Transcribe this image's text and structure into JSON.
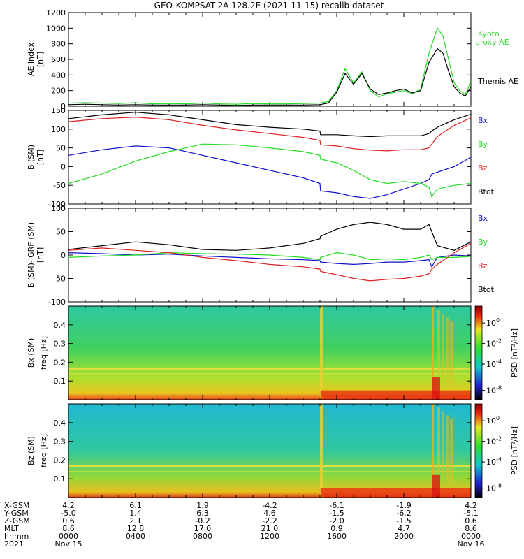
{
  "title": "GEO-KOMPSAT-2A 128.2E (2021-11-15) recalib dataset",
  "colors": {
    "black": "#000000",
    "blue": "#1010cc",
    "green": "#22dd22",
    "red": "#dd2222",
    "kyoto": "#33dd33"
  },
  "chart_data": [
    {
      "type": "line",
      "ylabel": "AE index [nT]",
      "ylim": [
        0,
        1200
      ],
      "yticks": [
        0,
        200,
        400,
        600,
        800,
        1000,
        1200
      ],
      "xlim": [
        0,
        1440
      ],
      "legend": [
        "Kyoto proxy AE",
        "Themis AE"
      ],
      "series": [
        {
          "name": "Kyoto proxy AE",
          "color": "green",
          "x": [
            0,
            60,
            120,
            180,
            240,
            300,
            360,
            420,
            480,
            540,
            600,
            660,
            720,
            780,
            840,
            900,
            930,
            960,
            990,
            1020,
            1050,
            1080,
            1110,
            1140,
            1170,
            1200,
            1230,
            1260,
            1290,
            1320,
            1340,
            1360,
            1380,
            1400,
            1420,
            1440
          ],
          "y": [
            40,
            45,
            40,
            35,
            45,
            30,
            35,
            30,
            40,
            30,
            25,
            35,
            30,
            30,
            35,
            40,
            60,
            200,
            480,
            300,
            440,
            200,
            120,
            160,
            180,
            200,
            160,
            220,
            680,
            1000,
            900,
            600,
            300,
            200,
            150,
            320
          ]
        },
        {
          "name": "Themis AE",
          "color": "black",
          "x": [
            0,
            60,
            120,
            180,
            240,
            300,
            360,
            420,
            480,
            540,
            600,
            660,
            720,
            780,
            840,
            900,
            930,
            960,
            990,
            1020,
            1050,
            1080,
            1110,
            1140,
            1170,
            1200,
            1230,
            1260,
            1290,
            1320,
            1340,
            1360,
            1380,
            1400,
            1420,
            1440
          ],
          "y": [
            20,
            25,
            20,
            15,
            20,
            15,
            15,
            15,
            20,
            15,
            10,
            15,
            15,
            15,
            15,
            20,
            40,
            180,
            420,
            280,
            420,
            220,
            150,
            170,
            200,
            220,
            170,
            200,
            560,
            740,
            680,
            450,
            250,
            170,
            130,
            250
          ]
        }
      ]
    },
    {
      "type": "line",
      "ylabel": "B (SM) [nT]",
      "ylim": [
        -100,
        150
      ],
      "yticks": [
        -100,
        -50,
        0,
        50,
        100,
        150
      ],
      "xlim": [
        0,
        1440
      ],
      "legend": [
        "Bx",
        "By",
        "Bz",
        "Btot"
      ],
      "series": [
        {
          "name": "Bx",
          "color": "blue",
          "x": [
            0,
            120,
            240,
            360,
            480,
            600,
            720,
            840,
            900,
            902,
            960,
            1020,
            1080,
            1140,
            1200,
            1260,
            1290,
            1300,
            1320,
            1380,
            1440
          ],
          "y": [
            30,
            45,
            55,
            50,
            30,
            10,
            -10,
            -30,
            -45,
            -65,
            -70,
            -80,
            -85,
            -75,
            -60,
            -45,
            -35,
            -20,
            -15,
            0,
            25
          ]
        },
        {
          "name": "By",
          "color": "green",
          "x": [
            0,
            120,
            240,
            360,
            480,
            600,
            720,
            840,
            900,
            902,
            960,
            1020,
            1080,
            1140,
            1200,
            1260,
            1290,
            1300,
            1320,
            1380,
            1440
          ],
          "y": [
            -45,
            -20,
            15,
            40,
            60,
            58,
            50,
            40,
            30,
            20,
            10,
            -10,
            -35,
            -45,
            -40,
            -45,
            -55,
            -80,
            -60,
            -50,
            -45
          ]
        },
        {
          "name": "Bz",
          "color": "red",
          "x": [
            0,
            120,
            240,
            360,
            480,
            600,
            720,
            840,
            900,
            902,
            960,
            1020,
            1080,
            1140,
            1200,
            1260,
            1290,
            1300,
            1320,
            1380,
            1440
          ],
          "y": [
            120,
            128,
            132,
            125,
            110,
            98,
            88,
            78,
            70,
            58,
            55,
            48,
            44,
            42,
            45,
            45,
            50,
            60,
            80,
            110,
            130
          ]
        },
        {
          "name": "Btot",
          "color": "black",
          "x": [
            0,
            120,
            240,
            360,
            480,
            600,
            720,
            840,
            900,
            902,
            960,
            1020,
            1080,
            1140,
            1200,
            1260,
            1290,
            1300,
            1320,
            1380,
            1440
          ],
          "y": [
            128,
            138,
            145,
            138,
            125,
            112,
            105,
            100,
            95,
            85,
            85,
            82,
            80,
            82,
            82,
            82,
            88,
            95,
            105,
            125,
            140
          ]
        }
      ]
    },
    {
      "type": "line",
      "ylabel": "B (SM)-IGRF (SM) [nT]",
      "ylim": [
        -100,
        100
      ],
      "yticks": [
        -100,
        -50,
        0,
        50,
        100
      ],
      "xlim": [
        0,
        1440
      ],
      "legend": [
        "Bx",
        "By",
        "Bz",
        "Btot"
      ],
      "series": [
        {
          "name": "Bx",
          "color": "blue",
          "x": [
            0,
            120,
            240,
            360,
            480,
            600,
            720,
            840,
            900,
            902,
            960,
            1020,
            1080,
            1140,
            1200,
            1260,
            1290,
            1300,
            1320,
            1380,
            1440
          ],
          "y": [
            5,
            3,
            0,
            2,
            -2,
            -5,
            -8,
            -10,
            -12,
            -15,
            -18,
            -20,
            -18,
            -15,
            -15,
            -12,
            -10,
            -25,
            -5,
            0,
            -2
          ]
        },
        {
          "name": "By",
          "color": "green",
          "x": [
            0,
            120,
            240,
            360,
            480,
            600,
            720,
            840,
            900,
            902,
            960,
            1020,
            1080,
            1140,
            1200,
            1260,
            1290,
            1300,
            1320,
            1380,
            1440
          ],
          "y": [
            -5,
            -2,
            0,
            5,
            3,
            2,
            0,
            -5,
            -10,
            -5,
            5,
            0,
            -10,
            -8,
            -10,
            -5,
            0,
            -10,
            -5,
            -5,
            -3
          ]
        },
        {
          "name": "Bz",
          "color": "red",
          "x": [
            0,
            120,
            240,
            360,
            480,
            600,
            720,
            840,
            900,
            902,
            960,
            1020,
            1080,
            1140,
            1200,
            1260,
            1290,
            1300,
            1320,
            1380,
            1440
          ],
          "y": [
            10,
            15,
            10,
            5,
            -5,
            -12,
            -20,
            -25,
            -30,
            -35,
            -42,
            -50,
            -55,
            -52,
            -50,
            -45,
            -40,
            -30,
            -20,
            5,
            25
          ]
        },
        {
          "name": "Btot",
          "color": "black",
          "x": [
            0,
            120,
            240,
            360,
            480,
            600,
            720,
            840,
            900,
            902,
            960,
            1020,
            1080,
            1140,
            1200,
            1260,
            1290,
            1300,
            1320,
            1380,
            1440
          ],
          "y": [
            12,
            20,
            28,
            22,
            12,
            10,
            15,
            25,
            35,
            40,
            55,
            65,
            70,
            65,
            55,
            55,
            65,
            50,
            20,
            10,
            28
          ]
        }
      ]
    },
    {
      "type": "heatmap",
      "ylabel": "Bx (SM) freq [Hz]",
      "ylim": [
        0,
        0.5
      ],
      "yticks": [
        0.1,
        0.2,
        0.3,
        0.4
      ],
      "colorbar_label": "PSD [nT²/Hz]",
      "colorbar_ticks": [
        "10^0",
        "10^-2",
        "10^-4",
        "10^-8"
      ]
    },
    {
      "type": "heatmap",
      "ylabel": "Bz (SM) freq [Hz]",
      "ylim": [
        0,
        0.5
      ],
      "yticks": [
        0.1,
        0.2,
        0.3,
        0.4
      ],
      "colorbar_label": "PSD [nT²/Hz]",
      "colorbar_ticks": [
        "10^0",
        "10^-2",
        "10^-4",
        "10^-8"
      ]
    }
  ],
  "panel_labels": {
    "p1": [
      "AE index",
      "[nT]"
    ],
    "p2": [
      "B (SM)",
      "[nT]"
    ],
    "p3": [
      "B (SM)-IGRF (SM)",
      "[nT]"
    ],
    "p4": [
      "Bx (SM)",
      "freq [Hz]"
    ],
    "p5": [
      "Bz (SM)",
      "freq [Hz]"
    ]
  },
  "legend_labels": {
    "kyoto1": "Kyoto",
    "kyoto2": "proxy AE",
    "themis": "Themis AE",
    "bx": "Bx",
    "by": "By",
    "bz": "Bz",
    "btot": "Btot",
    "psd": "PSD [nT²/Hz]"
  },
  "ephemeris": {
    "row_labels": [
      "X-GSM",
      "Y-GSM",
      "Z-GSM",
      "MLT",
      "hhmm",
      "2021"
    ],
    "columns": [
      [
        "4.2",
        "-5.0",
        "0.6",
        "8.6",
        "0000",
        "Nov 15"
      ],
      [
        "6.1",
        "1.4",
        "2.1",
        "12.8",
        "0400",
        ""
      ],
      [
        "1.9",
        "6.3",
        "-0.2",
        "17.0",
        "0800",
        ""
      ],
      [
        "-4.2",
        "4.6",
        "-2.2",
        "21.0",
        "1200",
        ""
      ],
      [
        "-6.1",
        "-1.5",
        "-2.0",
        "0.9",
        "1600",
        ""
      ],
      [
        "-1.9",
        "-6.2",
        "-1.5",
        "4.7",
        "2000",
        ""
      ],
      [
        "4.2",
        "-5.1",
        "0.6",
        "8.6",
        "0000",
        "Nov 16"
      ]
    ]
  }
}
